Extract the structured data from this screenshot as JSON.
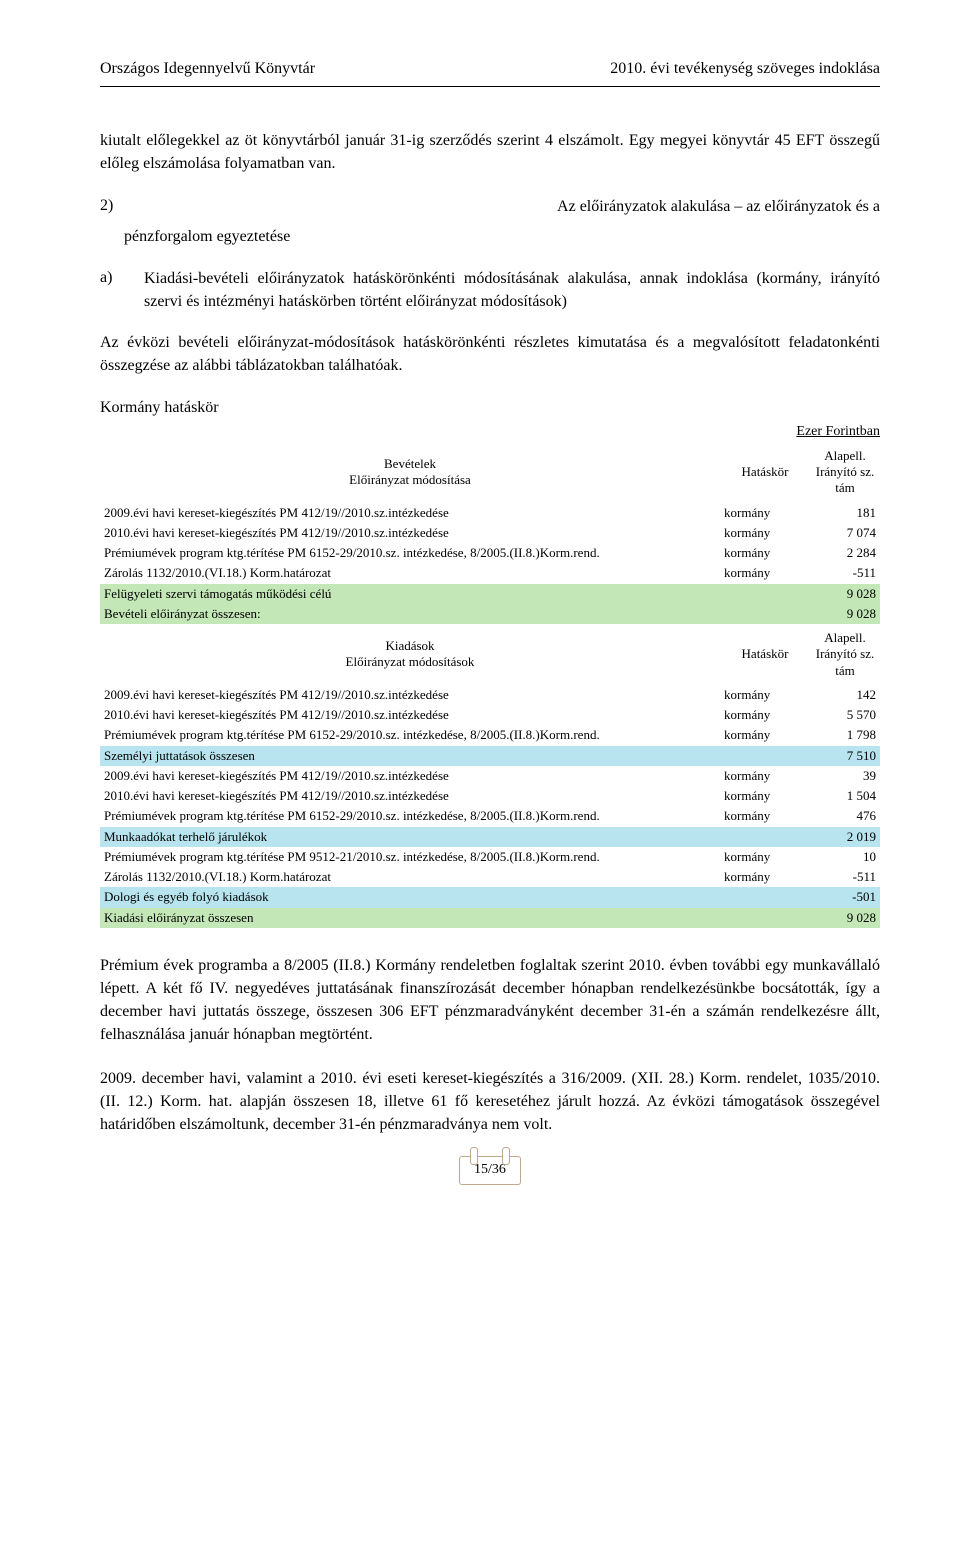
{
  "header": {
    "left": "Országos Idegennyelvű Könyvtár",
    "right": "2010. évi tevékenység szöveges indoklása"
  },
  "para1": "kiutalt előlegekkel az öt könyvtárból január 31-ig szerződés szerint 4 elszámolt. Egy megyei könyvtár 45 EFT összegű előleg elszámolása folyamatban van.",
  "section2": {
    "label": "2)",
    "left_text": "pénzforgalom egyeztetése",
    "right_text": "Az előirányzatok alakulása – az előirányzatok és a"
  },
  "section_a": {
    "label": "a)",
    "text": "Kiadási-bevételi előirányzatok hatáskörönkénti módosításának alakulása, annak indoklása (kormány, irányító szervi és intézményi hatáskörben történt előirányzat módosítások)"
  },
  "para2": "Az évközi bevételi előirányzat-módosítások hatáskörönkénti részletes kimutatása és a megvalósított feladatonkénti összegzése az alábbi táblázatokban találhatóak.",
  "subhead": "Kormány hatáskör",
  "unit_label": "Ezer Forintban",
  "table": {
    "head_rev": {
      "c1": "Bevételek\nElőirányzat módosítása",
      "c2": "Hatáskör",
      "c3": "Alapell.\nIrányító sz.\ntám"
    },
    "head_exp": {
      "c1": "Kiadások\nElőirányzat módosítások",
      "c2": "Hatáskör",
      "c3": "Alapell.\nIrányító sz.\ntám"
    },
    "rows": [
      {
        "type": "head",
        "key": "head_rev"
      },
      {
        "cells": [
          "2009.évi havi kereset-kiegészítés PM 412/19//2010.sz.intézkedése",
          "kormány",
          "181"
        ]
      },
      {
        "cells": [
          "2010.évi havi kereset-kiegészítés PM 412/19//2010.sz.intézkedése",
          "kormány",
          "7 074"
        ]
      },
      {
        "cells": [
          "Prémiumévek program ktg.térítése PM 6152-29/2010.sz. intézkedése, 8/2005.(II.8.)Korm.rend.",
          "kormány",
          "2 284"
        ]
      },
      {
        "cells": [
          "Zárolás 1132/2010.(VI.18.) Korm.határozat",
          "kormány",
          "-511"
        ]
      },
      {
        "cls": "green",
        "cells": [
          "Felügyeleti szervi támogatás működési célú",
          "",
          "9 028"
        ]
      },
      {
        "cls": "green",
        "cells": [
          "Bevételi előirányzat összesen:",
          "",
          "9 028"
        ]
      },
      {
        "type": "head",
        "key": "head_exp"
      },
      {
        "cells": [
          "2009.évi havi kereset-kiegészítés PM 412/19//2010.sz.intézkedése",
          "kormány",
          "142"
        ]
      },
      {
        "cells": [
          "2010.évi havi kereset-kiegészítés PM 412/19//2010.sz.intézkedése",
          "kormány",
          "5 570"
        ]
      },
      {
        "cells": [
          "Prémiumévek program ktg.térítése PM 6152-29/2010.sz. intézkedése, 8/2005.(II.8.)Korm.rend.",
          "kormány",
          "1 798"
        ]
      },
      {
        "cls": "blue",
        "cells": [
          "Személyi juttatások összesen",
          "",
          "7 510"
        ]
      },
      {
        "cells": [
          "2009.évi havi kereset-kiegészítés PM 412/19//2010.sz.intézkedése",
          "kormány",
          "39"
        ]
      },
      {
        "cells": [
          "2010.évi havi kereset-kiegészítés PM 412/19//2010.sz.intézkedése",
          "kormány",
          "1 504"
        ]
      },
      {
        "cells": [
          "Prémiumévek program ktg.térítése PM 6152-29/2010.sz. intézkedése, 8/2005.(II.8.)Korm.rend.",
          "kormány",
          "476"
        ]
      },
      {
        "cls": "blue",
        "cells": [
          "Munkaadókat terhelő járulékok",
          "",
          "2 019"
        ]
      },
      {
        "cells": [
          "Prémiumévek program ktg.térítése PM 9512-21/2010.sz. intézkedése, 8/2005.(II.8.)Korm.rend.",
          "kormány",
          "10"
        ]
      },
      {
        "cells": [
          "Zárolás 1132/2010.(VI.18.) Korm.határozat",
          "kormány",
          "-511"
        ]
      },
      {
        "cls": "blue",
        "cells": [
          "Dologi és egyéb folyó kiadások",
          "",
          "-501"
        ]
      },
      {
        "cls": "green",
        "cells": [
          "Kiadási előirányzat összesen",
          "",
          "9 028"
        ]
      }
    ]
  },
  "para3": "Prémium évek programba a 8/2005 (II.8.) Kormány rendeletben foglaltak szerint 2010. évben további egy munkavállaló lépett. A két fő IV. negyedéves juttatásának finanszírozását december hónapban rendelkezésünkbe bocsátották, így a december havi juttatás összege, összesen 306 EFT pénzmaradványként december 31-én a számán rendelkezésre állt, felhasználása január hónapban megtörtént.",
  "para4": "2009. december havi, valamint a 2010. évi eseti kereset-kiegészítés a 316/2009. (XII. 28.) Korm. rendelet, 1035/2010. (II. 12.) Korm. hat. alapján összesen 18, illetve 61 fő keresetéhez járult hozzá. Az évközi támogatások összegével határidőben elszámoltunk, december 31-én pénzmaradványa nem volt.",
  "page_num": "15/36"
}
